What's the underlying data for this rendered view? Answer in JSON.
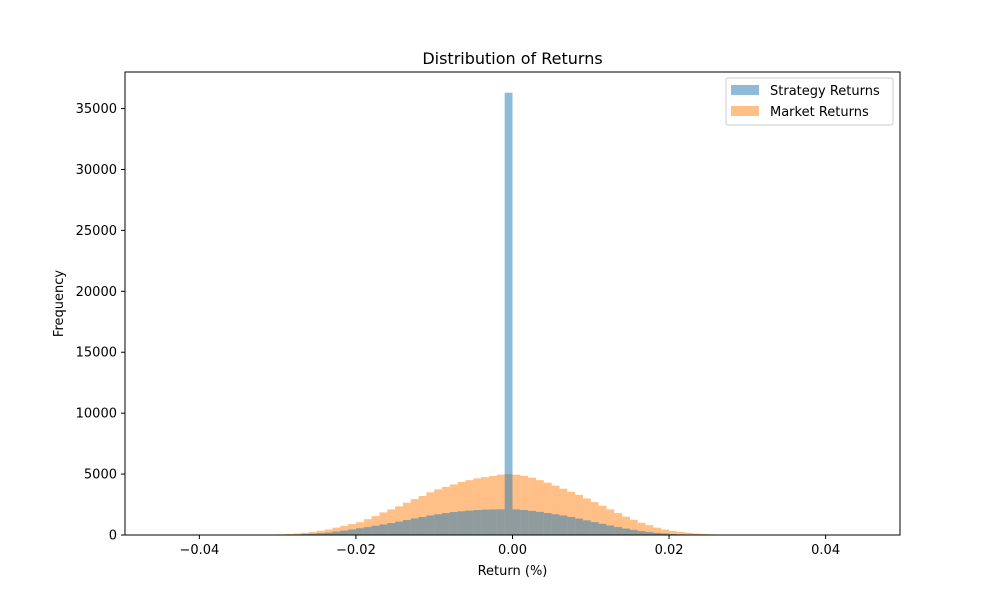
{
  "chart_data": {
    "type": "bar",
    "title": "Distribution of Returns",
    "xlabel": "Return (%)",
    "ylabel": "Frequency",
    "xlim": [
      -0.0495,
      0.0495
    ],
    "ylim": [
      0,
      38000
    ],
    "bin_width": 0.001,
    "grid": false,
    "legend_position": "top-right",
    "x_ticks": [
      {
        "value": -0.04,
        "label": "−0.04"
      },
      {
        "value": -0.02,
        "label": "−0.02"
      },
      {
        "value": 0.0,
        "label": "0.00"
      },
      {
        "value": 0.02,
        "label": "0.02"
      },
      {
        "value": 0.04,
        "label": "0.04"
      }
    ],
    "y_ticks": [
      {
        "value": 0,
        "label": "0"
      },
      {
        "value": 5000,
        "label": "5000"
      },
      {
        "value": 10000,
        "label": "10000"
      },
      {
        "value": 15000,
        "label": "15000"
      },
      {
        "value": 20000,
        "label": "20000"
      },
      {
        "value": 25000,
        "label": "25000"
      },
      {
        "value": 30000,
        "label": "30000"
      },
      {
        "value": 35000,
        "label": "35000"
      }
    ],
    "series": [
      {
        "name": "Market Returns",
        "color": "#ff7f0e",
        "opacity": 0.5,
        "bin_starts": [
          -0.03,
          -0.029,
          -0.028,
          -0.027,
          -0.026,
          -0.025,
          -0.024,
          -0.023,
          -0.022,
          -0.021,
          -0.02,
          -0.019,
          -0.018,
          -0.017,
          -0.016,
          -0.015,
          -0.014,
          -0.013,
          -0.012,
          -0.011,
          -0.01,
          -0.009,
          -0.008,
          -0.007,
          -0.006,
          -0.005,
          -0.004,
          -0.003,
          -0.002,
          -0.001,
          0.0,
          0.001,
          0.002,
          0.003,
          0.004,
          0.005,
          0.006,
          0.007,
          0.008,
          0.009,
          0.01,
          0.011,
          0.012,
          0.013,
          0.014,
          0.015,
          0.016,
          0.017,
          0.018,
          0.019,
          0.02,
          0.021,
          0.022,
          0.023,
          0.024,
          0.025,
          0.026,
          0.027,
          0.028,
          0.029
        ],
        "values": [
          50,
          80,
          120,
          180,
          250,
          350,
          450,
          600,
          750,
          900,
          1050,
          1300,
          1550,
          1850,
          2100,
          2350,
          2650,
          2950,
          3200,
          3500,
          3750,
          3950,
          4150,
          4350,
          4500,
          4650,
          4750,
          4850,
          4950,
          5000,
          4950,
          4850,
          4700,
          4500,
          4300,
          4050,
          3800,
          3550,
          3300,
          3000,
          2700,
          2400,
          2100,
          1800,
          1500,
          1250,
          1000,
          800,
          600,
          450,
          340,
          250,
          180,
          120,
          80,
          50,
          30,
          20,
          10,
          5
        ]
      },
      {
        "name": "Strategy Returns",
        "color": "#1f77b4",
        "opacity": 0.5,
        "bin_starts": [
          -0.03,
          -0.029,
          -0.028,
          -0.027,
          -0.026,
          -0.025,
          -0.024,
          -0.023,
          -0.022,
          -0.021,
          -0.02,
          -0.019,
          -0.018,
          -0.017,
          -0.016,
          -0.015,
          -0.014,
          -0.013,
          -0.012,
          -0.011,
          -0.01,
          -0.009,
          -0.008,
          -0.007,
          -0.006,
          -0.005,
          -0.004,
          -0.003,
          -0.002,
          -0.001,
          0.0,
          0.001,
          0.002,
          0.003,
          0.004,
          0.005,
          0.006,
          0.007,
          0.008,
          0.009,
          0.01,
          0.011,
          0.012,
          0.013,
          0.014,
          0.015,
          0.016,
          0.017,
          0.018,
          0.019,
          0.02,
          0.021,
          0.022,
          0.023,
          0.024,
          0.025,
          0.026,
          0.027,
          0.028,
          0.029
        ],
        "values": [
          10,
          20,
          40,
          70,
          100,
          150,
          200,
          280,
          360,
          450,
          550,
          650,
          760,
          870,
          980,
          1100,
          1230,
          1360,
          1480,
          1600,
          1700,
          1800,
          1880,
          1950,
          2000,
          2050,
          2080,
          2100,
          2110,
          36300,
          2100,
          2050,
          1980,
          1900,
          1800,
          1700,
          1600,
          1480,
          1350,
          1200,
          1060,
          920,
          780,
          650,
          530,
          420,
          320,
          240,
          170,
          120,
          80,
          50,
          30,
          20,
          10,
          5,
          3,
          2,
          1,
          0
        ]
      }
    ]
  }
}
